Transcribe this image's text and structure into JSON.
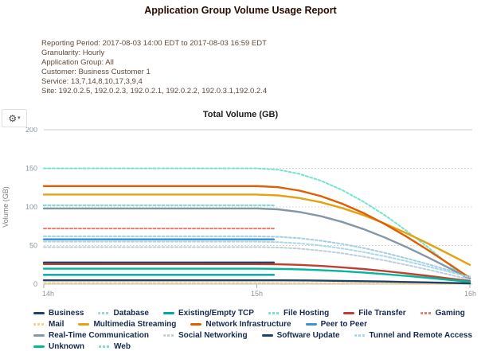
{
  "report": {
    "title": "Application Group Volume Usage Report",
    "info_lines": [
      "Reporting Period: 2017-08-03 14:00 EDT to 2017-08-03 16:59 EDT",
      "Granularity: Hourly",
      "Application Group: All",
      "Customer: Business Customer 1",
      "Service: 13,7,14,8,10,17,3,9,4",
      "Site: 192.0.2.5, 192.0.2.3, 192.0.2.1, 192.0.2.2, 192.0.3.1,192.0.2.4"
    ]
  },
  "icons": {
    "settings": "⚙",
    "caret_down": "▾"
  },
  "chart_data": {
    "type": "line",
    "title": "Total Volume (GB)",
    "ylabel": "Volume (GB)",
    "xlabel": "",
    "x_domain": [
      14,
      16
    ],
    "xticks": [
      {
        "x": 14,
        "label": "14h"
      },
      {
        "x": 15,
        "label": "15h"
      },
      {
        "x": 16,
        "label": "16h"
      }
    ],
    "ylim": [
      0,
      200
    ],
    "yticks": [
      0,
      50,
      100,
      150,
      200
    ],
    "grid": "horizontal-dotted",
    "legend_position": "bottom",
    "shape_note": "all series flat 14h-15h; 'stub' series end just after 15h; others decline smoothly to 16h",
    "stub_end_x": 15.08,
    "decline_profile_dx": [
      0,
      0.1,
      0.2,
      0.3,
      0.4,
      0.5,
      0.6,
      0.7,
      0.8,
      0.9,
      1.0
    ],
    "decline_profile": [
      1,
      0.988,
      0.951,
      0.891,
      0.809,
      0.707,
      0.588,
      0.454,
      0.309,
      0.156,
      0
    ],
    "series": [
      {
        "name": "Business",
        "color": "#1f4068",
        "start": 28,
        "end": null,
        "stub": true,
        "dash": false
      },
      {
        "name": "Database",
        "color": "#a6cee3",
        "start": 62,
        "end": 10,
        "stub": false,
        "dash": true
      },
      {
        "name": "Existing/Empty TCP",
        "color": "#00a6a6",
        "start": 12,
        "end": null,
        "stub": true,
        "dash": false
      },
      {
        "name": "File Hosting",
        "color": "#76e3d1",
        "start": 150,
        "end": 3,
        "stub": false,
        "dash": true
      },
      {
        "name": "File Transfer",
        "color": "#bf3f34",
        "start": 26,
        "end": 4,
        "stub": false,
        "dash": false
      },
      {
        "name": "Gaming",
        "color": "#e77a70",
        "start": 72,
        "end": null,
        "stub": true,
        "dash": true
      },
      {
        "name": "Mail",
        "color": "#f3d38a",
        "start": 1.5,
        "end": 0.3,
        "stub": false,
        "dash": true
      },
      {
        "name": "Multimedia Streaming",
        "color": "#e3a310",
        "start": 116,
        "end": 25,
        "stub": false,
        "dash": false
      },
      {
        "name": "Network Infrastructure",
        "color": "#e05e00",
        "start": 127,
        "end": 8,
        "stub": false,
        "dash": false
      },
      {
        "name": "Peer to Peer",
        "color": "#3f8fd6",
        "start": 58,
        "end": null,
        "stub": true,
        "dash": false
      },
      {
        "name": "Real-Time Communication",
        "color": "#8596a6",
        "start": 98,
        "end": 7,
        "stub": false,
        "dash": false
      },
      {
        "name": "Social Networking",
        "color": "#bccfda",
        "start": 48,
        "end": 6,
        "stub": false,
        "dash": true
      },
      {
        "name": "Software Update",
        "color": "#1f4068",
        "start": 5,
        "end": 1,
        "stub": false,
        "dash": false
      },
      {
        "name": "Tunnel and Remote Access",
        "color": "#a8d8ec",
        "start": 55,
        "end": 9,
        "stub": false,
        "dash": true
      },
      {
        "name": "Unknown",
        "color": "#00b89b",
        "start": 20,
        "end": 3,
        "stub": false,
        "dash": false
      },
      {
        "name": "Web",
        "color": "#7fdbd4",
        "start": 102,
        "end": null,
        "stub": true,
        "dash": true
      }
    ]
  }
}
